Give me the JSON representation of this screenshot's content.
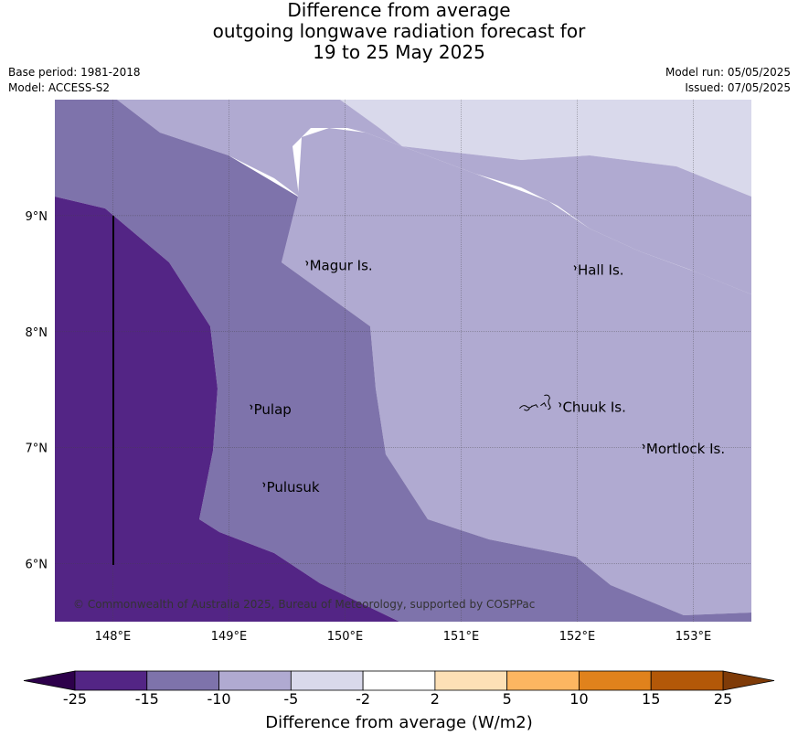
{
  "title": {
    "line1": "Difference from average",
    "line2": "outgoing longwave radiation forecast for",
    "line3": "19 to 25 May 2025"
  },
  "meta": {
    "base_period": "Base period: 1981-2018",
    "model": "Model: ACCESS-S2",
    "model_run": "Model run: 05/05/2025",
    "issued": "Issued: 07/05/2025"
  },
  "map": {
    "extent": {
      "lon_min": 147.5,
      "lon_max": 153.5,
      "lat_min": 5.5,
      "lat_max": 10.0
    },
    "lon_ticks": [
      {
        "value": 148,
        "label": "148°E"
      },
      {
        "value": 149,
        "label": "149°E"
      },
      {
        "value": 150,
        "label": "150°E"
      },
      {
        "value": 151,
        "label": "151°E"
      },
      {
        "value": 152,
        "label": "152°E"
      },
      {
        "value": 153,
        "label": "153°E"
      }
    ],
    "lat_ticks": [
      {
        "value": 9,
        "label": "9°N"
      },
      {
        "value": 8,
        "label": "8°N"
      },
      {
        "value": 7,
        "label": "7°N"
      },
      {
        "value": 6,
        "label": "6°N"
      }
    ],
    "places": [
      {
        "name": "Magur Is.",
        "lon": 149.67,
        "lat": 8.57
      },
      {
        "name": "Hall Is.",
        "lon": 151.98,
        "lat": 8.53
      },
      {
        "name": "Pulap",
        "lon": 149.19,
        "lat": 7.33
      },
      {
        "name": "Chuuk Is.",
        "lon": 151.85,
        "lat": 7.35
      },
      {
        "name": "Mortlock Is.",
        "lon": 152.57,
        "lat": 6.99
      },
      {
        "name": "Pulusuk",
        "lon": 149.3,
        "lat": 6.66
      }
    ],
    "copyright": "© Commonwealth of Australia 2025, Bureau of Meteorology, supported by COSPPac",
    "colors": {
      "band_lt_-15": "#532585",
      "band_-15_-10": "#7e73ab",
      "band_-10_-5": "#b0aad1",
      "band_-5_-2": "#d9d9eb",
      "ocean_background": "#ffffff"
    }
  },
  "colorbar": {
    "title": "Difference from average (W/m2)",
    "labels": [
      "-25",
      "-15",
      "-10",
      "-5",
      "-2",
      "2",
      "5",
      "10",
      "15",
      "25"
    ],
    "below_color": "#2d004b",
    "above_color": "#7f3b08",
    "colors": [
      "#532585",
      "#7e73ab",
      "#b0aad1",
      "#d9d9eb",
      "#ffffff",
      "#fde0b6",
      "#fcb661",
      "#e0821c",
      "#b35808"
    ]
  }
}
